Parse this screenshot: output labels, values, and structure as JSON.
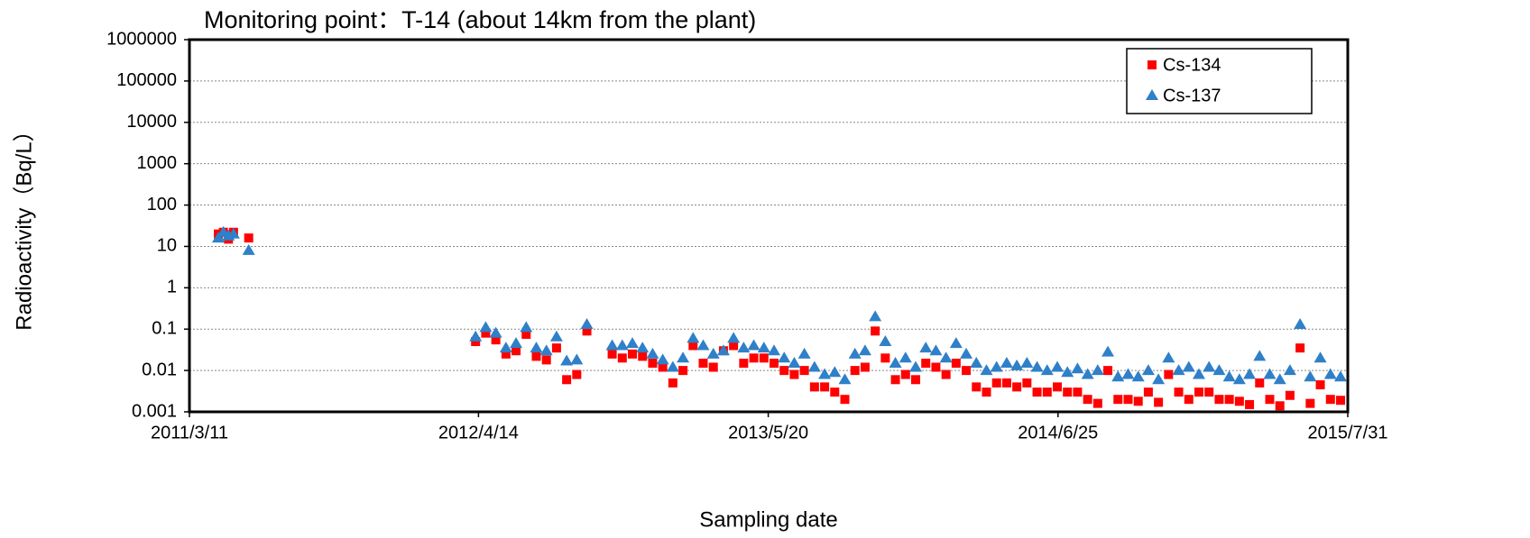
{
  "chart_data": {
    "type": "scatter",
    "title": "Monitoring point：T-14 (about 14km from the plant)",
    "x_label": "Sampling date",
    "y_label": "Radioactivity（Bq/L）",
    "y_scale": "log",
    "grid": true,
    "legend": "upper right",
    "xlim": [
      "2011/3/11",
      "2015/7/31"
    ],
    "xticks": [
      "2011/3/11",
      "2012/4/14",
      "2013/5/20",
      "2014/6/25",
      "2015/7/31"
    ],
    "ylim": [
      0.001,
      1000000
    ],
    "yticks": [
      0.001,
      0.01,
      0.1,
      1,
      10,
      100,
      1000,
      10000,
      100000,
      1000000
    ],
    "x": [
      "2011/4/20",
      "2011/4/27",
      "2011/5/4",
      "2011/5/11",
      "2011/6/1",
      "2012/4/10",
      "2012/4/24",
      "2012/5/8",
      "2012/5/22",
      "2012/6/5",
      "2012/6/19",
      "2012/7/3",
      "2012/7/17",
      "2012/7/31",
      "2012/8/14",
      "2012/8/28",
      "2012/9/11",
      "2012/10/16",
      "2012/10/30",
      "2012/11/13",
      "2012/11/27",
      "2012/12/11",
      "2012/12/25",
      "2013/1/8",
      "2013/1/22",
      "2013/2/5",
      "2013/2/19",
      "2013/3/5",
      "2013/3/19",
      "2013/4/2",
      "2013/4/16",
      "2013/4/30",
      "2013/5/14",
      "2013/5/28",
      "2013/6/11",
      "2013/6/25",
      "2013/7/9",
      "2013/7/23",
      "2013/8/6",
      "2013/8/20",
      "2013/9/3",
      "2013/9/17",
      "2013/10/1",
      "2013/10/15",
      "2013/10/29",
      "2013/11/12",
      "2013/11/26",
      "2013/12/10",
      "2013/12/24",
      "2014/1/7",
      "2014/1/21",
      "2014/2/4",
      "2014/2/18",
      "2014/3/4",
      "2014/3/18",
      "2014/4/1",
      "2014/4/15",
      "2014/4/29",
      "2014/5/13",
      "2014/5/27",
      "2014/6/10",
      "2014/6/24",
      "2014/7/8",
      "2014/7/22",
      "2014/8/5",
      "2014/8/19",
      "2014/9/2",
      "2014/9/16",
      "2014/9/30",
      "2014/10/14",
      "2014/10/28",
      "2014/11/11",
      "2014/11/25",
      "2014/12/9",
      "2014/12/23",
      "2015/1/6",
      "2015/1/20",
      "2015/2/3",
      "2015/2/17",
      "2015/3/3",
      "2015/3/17",
      "2015/3/31",
      "2015/4/14",
      "2015/4/28",
      "2015/5/12",
      "2015/5/26",
      "2015/6/9",
      "2015/6/23",
      "2015/7/7",
      "2015/7/21"
    ],
    "series": [
      {
        "name": "Cs-134",
        "color": "#ff0000",
        "marker": "square",
        "values": [
          20,
          22,
          15,
          22,
          16,
          0.05,
          0.08,
          0.055,
          0.025,
          0.03,
          0.075,
          0.022,
          0.018,
          0.035,
          0.006,
          0.008,
          0.09,
          0.025,
          0.02,
          0.025,
          0.022,
          0.015,
          0.012,
          0.005,
          0.01,
          0.04,
          0.015,
          0.012,
          0.03,
          0.04,
          0.015,
          0.02,
          0.02,
          0.015,
          0.01,
          0.008,
          0.01,
          0.004,
          0.004,
          0.003,
          0.002,
          0.01,
          0.012,
          0.09,
          0.02,
          0.006,
          0.008,
          0.006,
          0.015,
          0.012,
          0.008,
          0.015,
          0.01,
          0.004,
          0.003,
          0.005,
          0.005,
          0.004,
          0.005,
          0.003,
          0.003,
          0.004,
          0.003,
          0.003,
          0.002,
          0.0016,
          0.01,
          0.002,
          0.002,
          0.0018,
          0.003,
          0.0017,
          0.008,
          0.003,
          0.002,
          0.003,
          0.003,
          0.002,
          0.002,
          0.0018,
          0.0015,
          0.005,
          0.002,
          0.0014,
          0.0025,
          0.035,
          0.0016,
          0.0045,
          0.002,
          0.0019
        ]
      },
      {
        "name": "Cs-137",
        "color": "#2f80c8",
        "marker": "triangle",
        "values": [
          16,
          22,
          18,
          20,
          8,
          0.065,
          0.11,
          0.08,
          0.035,
          0.045,
          0.11,
          0.035,
          0.03,
          0.065,
          0.017,
          0.018,
          0.13,
          0.04,
          0.04,
          0.045,
          0.035,
          0.025,
          0.018,
          0.012,
          0.02,
          0.06,
          0.04,
          0.025,
          0.03,
          0.06,
          0.035,
          0.04,
          0.035,
          0.03,
          0.02,
          0.015,
          0.025,
          0.012,
          0.008,
          0.009,
          0.006,
          0.025,
          0.03,
          0.2,
          0.05,
          0.015,
          0.02,
          0.012,
          0.035,
          0.03,
          0.02,
          0.045,
          0.025,
          0.015,
          0.01,
          0.012,
          0.015,
          0.013,
          0.015,
          0.012,
          0.01,
          0.012,
          0.009,
          0.011,
          0.008,
          0.01,
          0.028,
          0.007,
          0.008,
          0.007,
          0.01,
          0.006,
          0.02,
          0.01,
          0.012,
          0.008,
          0.012,
          0.01,
          0.007,
          0.006,
          0.008,
          0.022,
          0.008,
          0.006,
          0.01,
          0.13,
          0.007,
          0.02,
          0.008,
          0.007
        ]
      }
    ]
  }
}
